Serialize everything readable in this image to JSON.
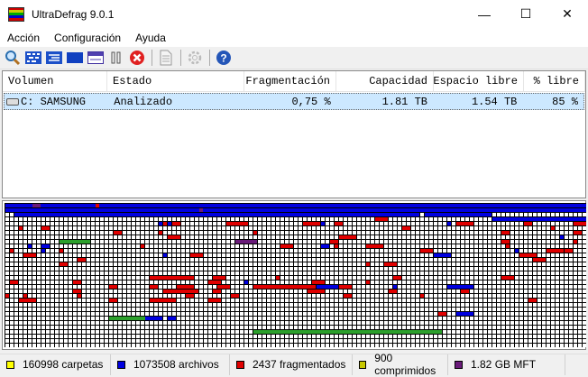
{
  "window": {
    "title": "UltraDefrag 9.0.1",
    "minimize": "—",
    "maximize": "☐",
    "close": "✕"
  },
  "menu": [
    "Acción",
    "Configuración",
    "Ayuda"
  ],
  "toolbar": [
    "search-icon",
    "defrag-icon",
    "optimize-icon",
    "quick-optimize-icon",
    "mft-icon",
    "pause-icon",
    "stop-icon",
    "report-icon",
    "settings-icon",
    "help-icon"
  ],
  "table": {
    "columns": [
      "Volumen",
      "Estado",
      "Fragmentación",
      "Capacidad",
      "Espacio libre",
      "% libre"
    ],
    "rows": [
      {
        "volume": "C: SAMSUNG",
        "status": "Analizado",
        "fragmentation": "0,75 %",
        "capacity": "1.81 TB",
        "free": "1.54 TB",
        "percent_free": "85 %"
      }
    ]
  },
  "colors": {
    "blue": "#0000e0",
    "red": "#e00000",
    "green": "#2ca02c",
    "purple": "#6a1b7a",
    "yellow": "#ffff00",
    "olive": "#c8c800",
    "navy": "#2030c0"
  },
  "cluster_map": {
    "cols": 129,
    "rows": 32,
    "segments": [
      [
        0,
        0,
        129,
        "blue"
      ],
      [
        1,
        0,
        129,
        "blue"
      ],
      [
        0,
        6,
        2,
        "purple"
      ],
      [
        0,
        20,
        1,
        "red"
      ],
      [
        1,
        43,
        1,
        "purple"
      ],
      [
        2,
        2,
        90,
        "blue"
      ],
      [
        2,
        93,
        15,
        "blue"
      ],
      [
        3,
        108,
        21,
        "blue"
      ],
      [
        4,
        34,
        1,
        "blue"
      ],
      [
        4,
        35,
        1,
        "red"
      ],
      [
        4,
        36,
        1,
        "blue"
      ],
      [
        4,
        37,
        2,
        "red"
      ],
      [
        4,
        49,
        5,
        "red"
      ],
      [
        4,
        66,
        4,
        "red"
      ],
      [
        4,
        70,
        1,
        "blue"
      ],
      [
        4,
        73,
        2,
        "red"
      ],
      [
        4,
        98,
        1,
        "blue"
      ],
      [
        4,
        100,
        4,
        "red"
      ],
      [
        4,
        115,
        2,
        "red"
      ],
      [
        4,
        126,
        3,
        "red"
      ],
      [
        3,
        82,
        3,
        "red"
      ],
      [
        5,
        3,
        1,
        "red"
      ],
      [
        5,
        8,
        2,
        "red"
      ],
      [
        5,
        88,
        2,
        "red"
      ],
      [
        5,
        121,
        1,
        "red"
      ],
      [
        6,
        24,
        2,
        "red"
      ],
      [
        6,
        34,
        1,
        "red"
      ],
      [
        6,
        55,
        1,
        "red"
      ],
      [
        6,
        110,
        2,
        "red"
      ],
      [
        6,
        126,
        2,
        "red"
      ],
      [
        7,
        36,
        3,
        "red"
      ],
      [
        7,
        74,
        4,
        "red"
      ],
      [
        7,
        123,
        1,
        "blue"
      ],
      [
        8,
        12,
        7,
        "green"
      ],
      [
        8,
        51,
        5,
        "purple"
      ],
      [
        8,
        72,
        2,
        "red"
      ],
      [
        8,
        110,
        2,
        "red"
      ],
      [
        8,
        126,
        1,
        "red"
      ],
      [
        9,
        5,
        1,
        "blue"
      ],
      [
        9,
        8,
        2,
        "blue"
      ],
      [
        9,
        30,
        1,
        "red"
      ],
      [
        9,
        61,
        3,
        "red"
      ],
      [
        9,
        70,
        2,
        "blue"
      ],
      [
        9,
        73,
        1,
        "red"
      ],
      [
        9,
        80,
        4,
        "red"
      ],
      [
        9,
        111,
        1,
        "red"
      ],
      [
        10,
        1,
        1,
        "red"
      ],
      [
        10,
        8,
        1,
        "blue"
      ],
      [
        10,
        12,
        1,
        "red"
      ],
      [
        10,
        92,
        3,
        "red"
      ],
      [
        10,
        113,
        1,
        "blue"
      ],
      [
        10,
        120,
        4,
        "red"
      ],
      [
        10,
        124,
        2,
        "red"
      ],
      [
        11,
        4,
        3,
        "red"
      ],
      [
        11,
        35,
        1,
        "blue"
      ],
      [
        11,
        41,
        3,
        "red"
      ],
      [
        11,
        95,
        4,
        "blue"
      ],
      [
        11,
        114,
        4,
        "red"
      ],
      [
        12,
        16,
        2,
        "red"
      ],
      [
        12,
        117,
        3,
        "red"
      ],
      [
        13,
        12,
        2,
        "red"
      ],
      [
        13,
        80,
        1,
        "red"
      ],
      [
        13,
        84,
        3,
        "red"
      ],
      [
        16,
        32,
        10,
        "red"
      ],
      [
        16,
        46,
        3,
        "red"
      ],
      [
        16,
        60,
        1,
        "red"
      ],
      [
        16,
        86,
        2,
        "red"
      ],
      [
        16,
        110,
        3,
        "red"
      ],
      [
        17,
        1,
        2,
        "red"
      ],
      [
        17,
        15,
        2,
        "red"
      ],
      [
        17,
        45,
        3,
        "red"
      ],
      [
        17,
        53,
        1,
        "blue"
      ],
      [
        17,
        68,
        3,
        "red"
      ],
      [
        17,
        80,
        1,
        "red"
      ],
      [
        18,
        23,
        2,
        "red"
      ],
      [
        18,
        32,
        2,
        "red"
      ],
      [
        18,
        38,
        4,
        "red"
      ],
      [
        18,
        47,
        3,
        "red"
      ],
      [
        18,
        55,
        14,
        "red"
      ],
      [
        18,
        69,
        5,
        "blue"
      ],
      [
        18,
        74,
        3,
        "red"
      ],
      [
        18,
        86,
        1,
        "blue"
      ],
      [
        18,
        98,
        6,
        "blue"
      ],
      [
        19,
        15,
        2,
        "red"
      ],
      [
        19,
        35,
        8,
        "red"
      ],
      [
        19,
        46,
        2,
        "red"
      ],
      [
        19,
        67,
        4,
        "red"
      ],
      [
        19,
        85,
        2,
        "red"
      ],
      [
        19,
        101,
        2,
        "red"
      ],
      [
        20,
        0,
        1,
        "red"
      ],
      [
        20,
        4,
        1,
        "red"
      ],
      [
        20,
        16,
        1,
        "red"
      ],
      [
        20,
        40,
        2,
        "red"
      ],
      [
        20,
        50,
        2,
        "red"
      ],
      [
        20,
        75,
        2,
        "red"
      ],
      [
        20,
        92,
        1,
        "red"
      ],
      [
        21,
        3,
        4,
        "red"
      ],
      [
        21,
        23,
        2,
        "red"
      ],
      [
        21,
        32,
        6,
        "red"
      ],
      [
        21,
        45,
        3,
        "red"
      ],
      [
        21,
        116,
        2,
        "red"
      ],
      [
        24,
        96,
        2,
        "red"
      ],
      [
        24,
        100,
        4,
        "blue"
      ],
      [
        25,
        23,
        10,
        "green"
      ],
      [
        25,
        31,
        4,
        "blue"
      ],
      [
        25,
        36,
        2,
        "blue"
      ],
      [
        28,
        55,
        42,
        "green"
      ]
    ]
  },
  "status": [
    {
      "label": "160998 carpetas",
      "color": "#ffff00"
    },
    {
      "label": "1073508 archivos",
      "color": "#0000e0"
    },
    {
      "label": "2437 fragmentados",
      "color": "#e00000"
    },
    {
      "label": "900 comprimidos",
      "color": "#c8c800"
    },
    {
      "label": "1.82 GB MFT",
      "color": "#6a1b7a"
    }
  ]
}
